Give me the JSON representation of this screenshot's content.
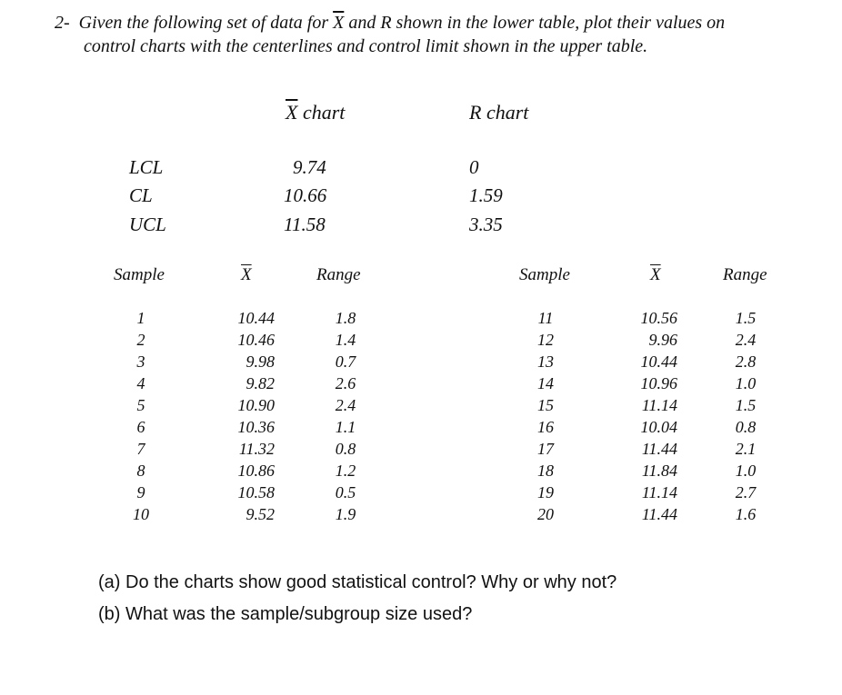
{
  "problem": {
    "number": "2-",
    "line1_a": "Given the following set of data for ",
    "xbar_symbol": "X",
    "line1_b": " and R shown in the lower table, plot their values on",
    "line2": "control charts with the centerlines and control limit shown in the upper table."
  },
  "limits": {
    "xbar_header": "X",
    "xbar_header_suffix": " chart",
    "r_header": "R chart",
    "rows": [
      {
        "label": "LCL",
        "xbar": "9.74",
        "r": "0"
      },
      {
        "label": "CL",
        "xbar": "10.66",
        "r": "1.59"
      },
      {
        "label": "UCL",
        "xbar": "11.58",
        "r": "3.35"
      }
    ]
  },
  "data_table": {
    "headers": {
      "sample": "Sample",
      "xbar": "X",
      "range": "Range"
    },
    "left": {
      "sample": [
        "1",
        "2",
        "3",
        "4",
        "5",
        "6",
        "7",
        "8",
        "9",
        "10"
      ],
      "xbar": [
        "10.44",
        "10.46",
        "9.98",
        "9.82",
        "10.90",
        "10.36",
        "11.32",
        "10.86",
        "10.58",
        "9.52"
      ],
      "range": [
        "1.8",
        "1.4",
        "0.7",
        "2.6",
        "2.4",
        "1.1",
        "0.8",
        "1.2",
        "0.5",
        "1.9"
      ]
    },
    "right": {
      "sample": [
        "11",
        "12",
        "13",
        "14",
        "15",
        "16",
        "17",
        "18",
        "19",
        "20"
      ],
      "xbar": [
        "10.56",
        "9.96",
        "10.44",
        "10.96",
        "11.14",
        "10.04",
        "11.44",
        "11.84",
        "11.14",
        "11.44"
      ],
      "range": [
        "1.5",
        "2.4",
        "2.8",
        "1.0",
        "1.5",
        "0.8",
        "2.1",
        "1.0",
        "2.7",
        "1.6"
      ]
    }
  },
  "questions": [
    "(a) Do the charts show good statistical control? Why or why not?",
    "(b) What was the sample/subgroup size used?"
  ]
}
